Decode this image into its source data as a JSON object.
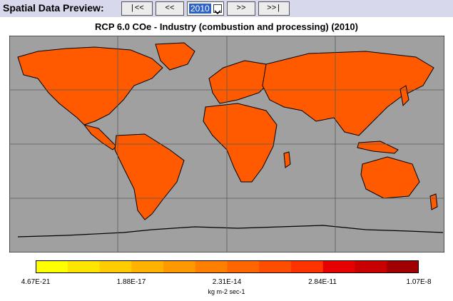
{
  "toolbar": {
    "label": "Spatial Data Preview:",
    "first_label": "|<<",
    "prev_label": "<<",
    "year_selected": "2010",
    "next_label": ">>",
    "last_label": ">>|"
  },
  "chart_data": {
    "type": "heatmap",
    "title": "RCP 6.0 COe - Industry (combustion and processing) (2010)",
    "colorbar": {
      "tick_labels": [
        "4.67E-21",
        "1.88E-17",
        "2.31E-14",
        "2.84E-11",
        "1.07E-8"
      ],
      "unit": "kg m-2 sec-1",
      "colors": [
        "#ffff00",
        "#ffe600",
        "#ffcc00",
        "#ffb300",
        "#ff9900",
        "#ff8000",
        "#ff6600",
        "#ff4d00",
        "#ff3300",
        "#e60000",
        "#c80000",
        "#a00000"
      ]
    },
    "map": {
      "ocean_color": "#a0a0a0",
      "land_color": "#ff5a00",
      "grid": true,
      "grid_color": "#5a5a5a",
      "coastline_color": "#000000"
    }
  }
}
